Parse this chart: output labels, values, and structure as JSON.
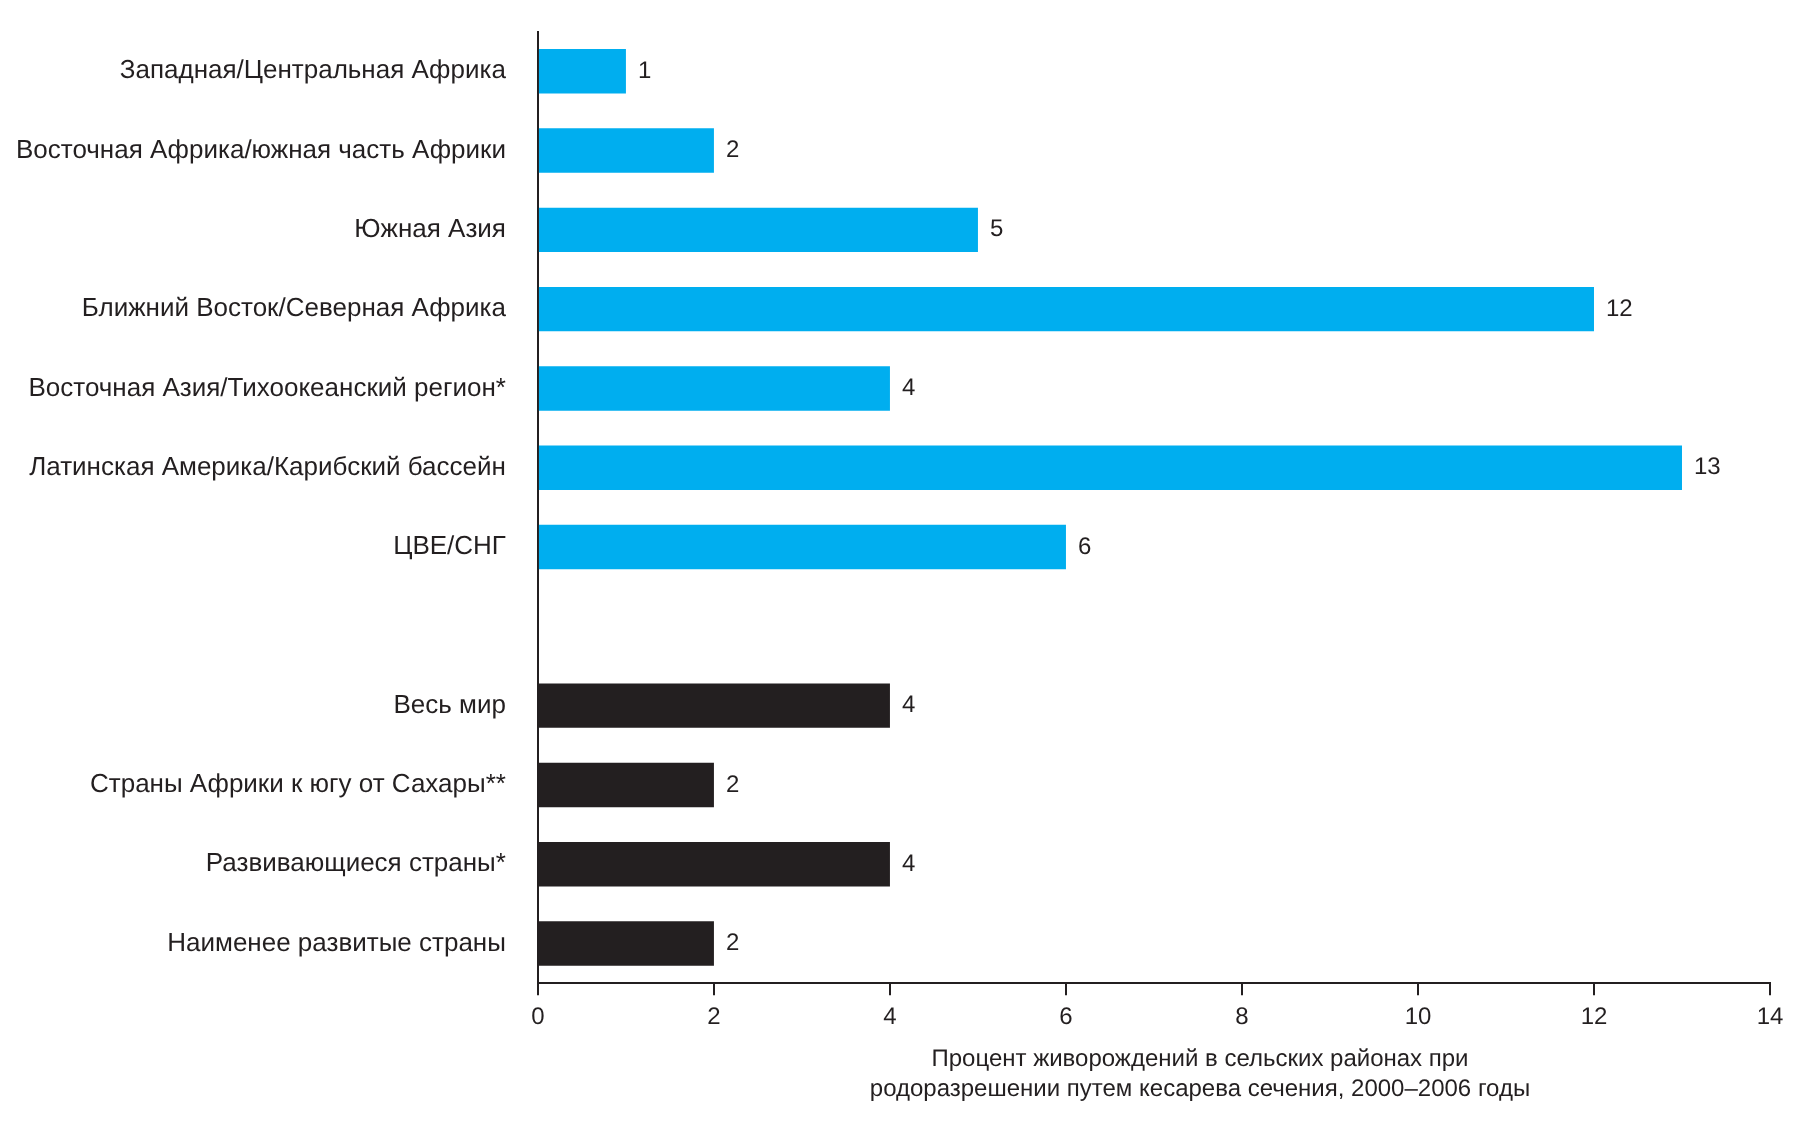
{
  "chart_data": {
    "type": "bar",
    "orientation": "horizontal",
    "categories": [
      "Западная/Центральная Африка",
      "Восточная Африка/южная часть Африки",
      "Южная Азия",
      "Ближний Восток/Северная Африка",
      "Восточная Азия/Тихоокеанский регион*",
      "Латинская Америка/Карибский бассейн",
      "ЦВЕ/СНГ",
      null,
      "Весь мир",
      "Страны Африки к югу от Сахары**",
      "Развивающиеся страны*",
      "Наименее развитые страны"
    ],
    "values": [
      1,
      2,
      5,
      12,
      4,
      13,
      6,
      null,
      4,
      2,
      4,
      2
    ],
    "colors": [
      "#00aeef",
      "#00aeef",
      "#00aeef",
      "#00aeef",
      "#00aeef",
      "#00aeef",
      "#00aeef",
      "#00aeef",
      "#231f20",
      "#231f20",
      "#231f20",
      "#231f20"
    ],
    "xlim": [
      0,
      14
    ],
    "xticks": [
      0,
      2,
      4,
      6,
      8,
      10,
      12,
      14
    ],
    "xlabel": "Процент живорождений в сельских районах при родоразрешении путем кесарева сечения, 2000–2006 годы",
    "data_labels": true,
    "grid": false,
    "legend": false
  }
}
